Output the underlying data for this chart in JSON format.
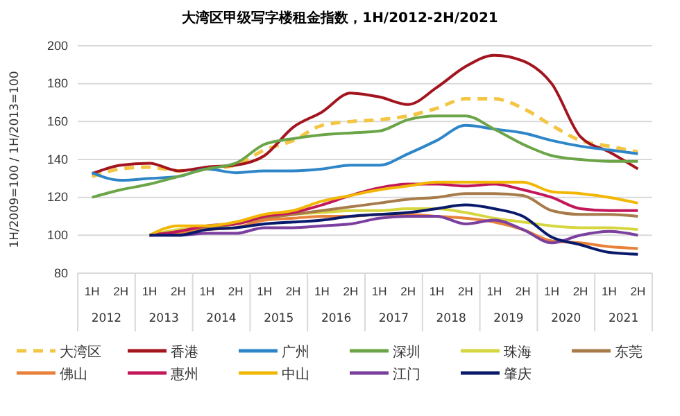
{
  "chart_data": {
    "type": "line",
    "title": "大湾区甲级写字楼租金指数，1H/2012-2H/2021",
    "ylabel": "1H/2009=100 / 1H/2013=100",
    "categories": [
      "1H",
      "2H",
      "1H",
      "2H",
      "1H",
      "2H",
      "1H",
      "2H",
      "1H",
      "2H",
      "1H",
      "2H",
      "1H",
      "2H",
      "1H",
      "2H",
      "1H",
      "2H",
      "1H",
      "2H"
    ],
    "annotations": [
      "2012",
      "2013",
      "2014",
      "2015",
      "2016",
      "2017",
      "2018",
      "2019",
      "2020",
      "2021"
    ],
    "ylim": [
      80,
      200
    ],
    "yticks": [
      80,
      100,
      120,
      140,
      160,
      180,
      200
    ],
    "grid": "y",
    "legend": "bottom",
    "marker": "none",
    "series": [
      {
        "name": "大湾区",
        "color": "#f4c542",
        "line_style": "dashed",
        "values": [
          131,
          135,
          136,
          134,
          135,
          137,
          145,
          150,
          158,
          160,
          161,
          163,
          167,
          172,
          172,
          167,
          158,
          150,
          147,
          144
        ]
      },
      {
        "name": "香港",
        "color": "#a3151e",
        "values": [
          132.5,
          137,
          138,
          134,
          136,
          137,
          142,
          157,
          165,
          175,
          173,
          169,
          178,
          189,
          195,
          192,
          180,
          152,
          144,
          135
        ]
      },
      {
        "name": "广州",
        "color": "#2e86c8",
        "values": [
          133,
          129,
          130,
          131,
          135,
          133,
          134,
          134,
          135,
          137,
          137,
          143,
          150,
          158,
          156,
          154,
          150,
          147,
          145,
          143
        ]
      },
      {
        "name": "深圳",
        "color": "#6ba547",
        "values": [
          120,
          124,
          127,
          131,
          135,
          138,
          148,
          151,
          153,
          154,
          155,
          161,
          163,
          163,
          156,
          148,
          142,
          140,
          139,
          139
        ]
      },
      {
        "name": "珠海",
        "color": "#d6d640",
        "values": [
          null,
          null,
          100,
          103,
          104,
          106,
          109,
          111,
          112,
          113,
          113,
          114,
          114,
          112,
          109,
          107,
          105,
          104,
          104,
          103
        ]
      },
      {
        "name": "东莞",
        "color": "#a77b4a",
        "values": [
          null,
          null,
          100,
          102,
          104,
          106,
          109,
          111,
          113,
          115,
          117,
          119,
          120,
          122,
          122,
          121,
          113,
          111,
          111,
          110
        ]
      },
      {
        "name": "佛山",
        "color": "#e8823a",
        "values": [
          null,
          null,
          100,
          101,
          103,
          104,
          108,
          109,
          110,
          110,
          111,
          111,
          110,
          109,
          107,
          103,
          97,
          96,
          94,
          93
        ]
      },
      {
        "name": "惠州",
        "color": "#c2185b",
        "values": [
          null,
          null,
          100,
          102,
          105,
          106,
          110,
          112,
          116,
          121,
          125,
          127,
          127,
          126,
          127,
          124,
          120,
          114,
          113,
          113
        ]
      },
      {
        "name": "中山",
        "color": "#f2b705",
        "values": [
          null,
          null,
          100,
          105,
          105,
          107,
          111,
          113,
          118,
          121,
          124,
          126,
          128,
          128,
          128,
          128,
          123,
          122,
          120,
          117
        ]
      },
      {
        "name": "江门",
        "color": "#7b3f9e",
        "values": [
          null,
          null,
          100,
          100,
          101,
          101,
          104,
          104,
          105,
          106,
          109,
          110,
          110,
          106,
          108,
          103,
          96,
          100,
          102,
          100
        ]
      },
      {
        "name": "肇庆",
        "color": "#0a1a6b",
        "values": [
          null,
          null,
          100,
          100,
          103,
          104,
          106,
          107,
          108,
          110,
          111,
          112,
          114,
          116,
          114,
          110,
          99,
          95,
          91,
          90
        ]
      }
    ]
  }
}
